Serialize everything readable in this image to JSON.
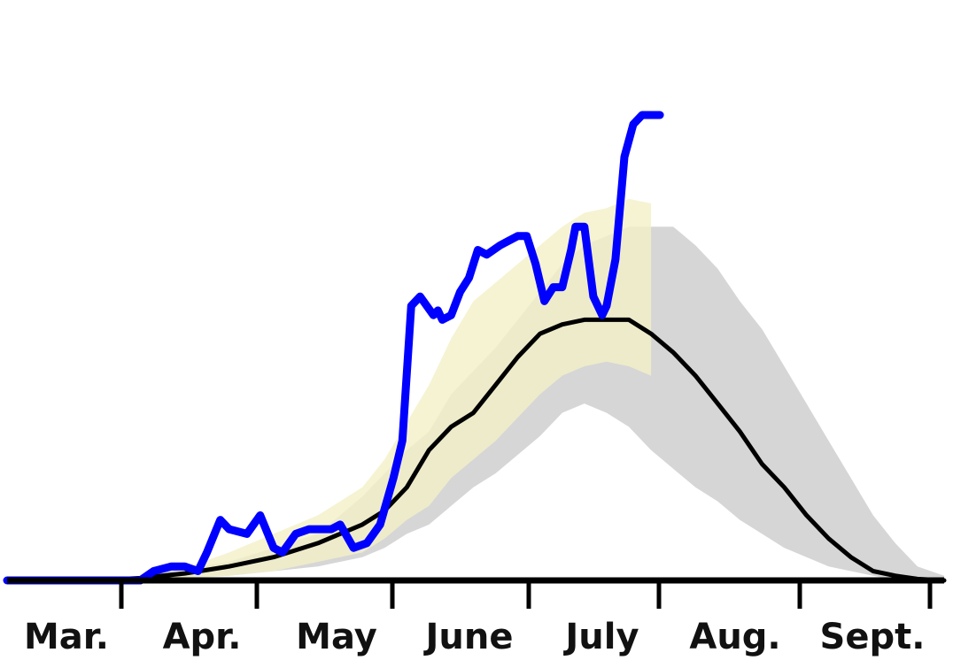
{
  "chart_data": {
    "type": "line",
    "title": "",
    "xlabel": "",
    "ylabel": "",
    "x_tick_labels": [
      "Mar.",
      "Apr.",
      "May",
      "June",
      "July",
      "Aug.",
      "Sept."
    ],
    "x_unit": "days since start of the axis",
    "xlim": [
      0,
      211
    ],
    "ylim": [
      0,
      100
    ],
    "grid": false,
    "legend": "none",
    "series": [
      {
        "name": "",
        "color": "#0000ff",
        "style": "thick line, ends at right edge of data",
        "x": [
          0,
          30,
          33,
          37,
          40,
          43,
          45,
          48,
          50,
          54,
          57,
          60,
          62,
          65,
          68,
          71,
          73,
          75,
          78,
          81,
          84,
          87,
          89,
          91,
          93,
          96,
          97,
          98,
          100,
          102,
          104,
          106,
          108,
          111,
          113,
          115,
          117,
          119,
          121,
          123,
          125,
          127,
          128,
          130,
          132,
          134,
          135,
          137,
          139,
          141,
          143,
          145,
          146,
          147
        ],
        "y": [
          0,
          0,
          2,
          3,
          3,
          2,
          6,
          13,
          11,
          10,
          14,
          7,
          6,
          10,
          11,
          11,
          11,
          12,
          7,
          8,
          12,
          22,
          30,
          59,
          61,
          57,
          58,
          56,
          57,
          62,
          65,
          71,
          70,
          72,
          73,
          74,
          74,
          68,
          60,
          63,
          63,
          71,
          76,
          76,
          61,
          57,
          59,
          69,
          91,
          98,
          100,
          100,
          100,
          100
        ]
      },
      {
        "name": "",
        "color": "#000000",
        "style": "median projection",
        "x": [
          0,
          20,
          30,
          40,
          50,
          60,
          70,
          80,
          85,
          90,
          95,
          100,
          105,
          110,
          115,
          120,
          125,
          130,
          135,
          140,
          145,
          150,
          155,
          160,
          165,
          170,
          175,
          180,
          185,
          190,
          195,
          200,
          205,
          211
        ],
        "y": [
          0,
          0,
          0.5,
          1.5,
          3,
          5,
          8,
          12,
          15,
          20,
          28,
          33,
          36,
          42,
          48,
          53,
          55,
          56,
          56,
          56,
          53,
          49,
          44,
          38,
          32,
          25,
          20,
          14,
          9,
          5,
          2,
          1,
          0.3,
          0
        ]
      }
    ],
    "bands": [
      {
        "name": "",
        "color": "#c8c8c8",
        "x": [
          30,
          50,
          60,
          70,
          80,
          85,
          90,
          95,
          100,
          105,
          110,
          115,
          120,
          125,
          130,
          135,
          140,
          145,
          150,
          155,
          160,
          165,
          170,
          175,
          180,
          185,
          190,
          195,
          200,
          205,
          211
        ],
        "low": [
          0,
          1,
          2,
          3,
          5,
          7,
          10,
          12,
          16,
          20,
          23,
          27,
          31,
          36,
          38,
          36,
          33,
          28,
          24,
          20,
          17,
          13,
          10,
          7,
          5,
          3,
          2,
          1,
          0,
          0,
          0
        ],
        "high": [
          1,
          4,
          7,
          10,
          18,
          23,
          28,
          32,
          40,
          45,
          50,
          56,
          62,
          68,
          72,
          74,
          76,
          76,
          76,
          72,
          67,
          60,
          54,
          46,
          38,
          30,
          22,
          14,
          8,
          3,
          1
        ]
      },
      {
        "name": "",
        "color": "#f4f0c8",
        "x": [
          35,
          50,
          60,
          70,
          80,
          85,
          90,
          95,
          100,
          105,
          110,
          115,
          120,
          125,
          130,
          135,
          140,
          145
        ],
        "low": [
          0,
          1,
          2,
          4,
          6,
          9,
          13,
          16,
          22,
          26,
          30,
          35,
          40,
          44,
          46,
          47,
          46,
          44
        ],
        "high": [
          1,
          6,
          10,
          14,
          20,
          26,
          34,
          42,
          52,
          60,
          64,
          68,
          72,
          76,
          79,
          80,
          82,
          81
        ]
      }
    ],
    "y_scale_note": "y values are relative (0-100) heights; no y-axis ticks are printed"
  }
}
